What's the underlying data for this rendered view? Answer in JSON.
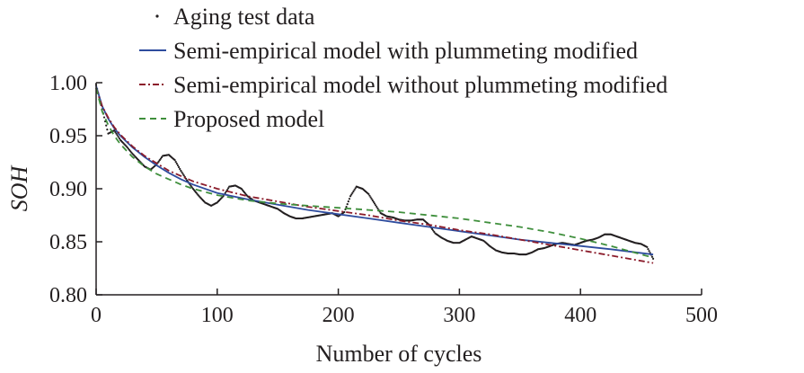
{
  "chart_data": {
    "type": "line",
    "title": "",
    "xlabel": "Number of cycles",
    "ylabel": "SOH",
    "xlim": [
      0,
      500
    ],
    "ylim": [
      0.8,
      1.0
    ],
    "xticks": [
      "0",
      "100",
      "200",
      "300",
      "400",
      "500"
    ],
    "yticks": [
      "0.80",
      "0.85",
      "0.90",
      "0.95",
      "1.00"
    ],
    "grid": false,
    "legend_position": "top-left",
    "series": [
      {
        "name": "Aging test data",
        "style": "dotted",
        "color": "#231f20",
        "x": [
          0,
          5,
          10,
          15,
          20,
          25,
          30,
          35,
          40,
          45,
          50,
          55,
          60,
          65,
          70,
          75,
          80,
          85,
          90,
          95,
          100,
          105,
          110,
          115,
          120,
          125,
          130,
          135,
          140,
          145,
          150,
          155,
          160,
          165,
          170,
          175,
          180,
          185,
          190,
          195,
          200,
          205,
          210,
          215,
          220,
          225,
          230,
          235,
          240,
          245,
          250,
          255,
          260,
          265,
          270,
          275,
          280,
          285,
          290,
          295,
          300,
          305,
          310,
          315,
          320,
          325,
          330,
          335,
          340,
          345,
          350,
          355,
          360,
          365,
          370,
          375,
          380,
          385,
          390,
          395,
          400,
          405,
          410,
          415,
          420,
          425,
          430,
          435,
          440,
          445,
          450,
          455,
          460
        ],
        "y": [
          0.998,
          0.975,
          0.952,
          0.955,
          0.946,
          0.94,
          0.933,
          0.927,
          0.921,
          0.918,
          0.923,
          0.931,
          0.932,
          0.927,
          0.917,
          0.908,
          0.9,
          0.893,
          0.887,
          0.884,
          0.887,
          0.893,
          0.902,
          0.903,
          0.9,
          0.893,
          0.889,
          0.887,
          0.885,
          0.883,
          0.881,
          0.877,
          0.874,
          0.872,
          0.872,
          0.873,
          0.874,
          0.875,
          0.876,
          0.877,
          0.874,
          0.878,
          0.893,
          0.902,
          0.9,
          0.895,
          0.886,
          0.877,
          0.874,
          0.873,
          0.871,
          0.87,
          0.87,
          0.871,
          0.871,
          0.866,
          0.858,
          0.854,
          0.851,
          0.849,
          0.849,
          0.852,
          0.855,
          0.853,
          0.851,
          0.846,
          0.842,
          0.84,
          0.839,
          0.839,
          0.838,
          0.838,
          0.84,
          0.843,
          0.844,
          0.846,
          0.848,
          0.849,
          0.848,
          0.847,
          0.849,
          0.851,
          0.852,
          0.854,
          0.857,
          0.857,
          0.855,
          0.853,
          0.851,
          0.849,
          0.848,
          0.845,
          0.834
        ]
      },
      {
        "name": "Semi-empirical model with plummeting modified",
        "style": "solid",
        "color": "#2e4c9e",
        "x": [
          0,
          5,
          10,
          15,
          20,
          30,
          40,
          50,
          60,
          70,
          80,
          100,
          125,
          150,
          175,
          200,
          225,
          250,
          275,
          300,
          325,
          350,
          375,
          400,
          425,
          460
        ],
        "y": [
          0.997,
          0.978,
          0.966,
          0.957,
          0.95,
          0.939,
          0.93,
          0.922,
          0.915,
          0.909,
          0.904,
          0.896,
          0.89,
          0.885,
          0.88,
          0.876,
          0.872,
          0.868,
          0.864,
          0.86,
          0.856,
          0.852,
          0.849,
          0.846,
          0.843,
          0.838
        ]
      },
      {
        "name": "Semi-empirical model without plummeting modified",
        "style": "dash-dot",
        "color": "#8b1c2b",
        "x": [
          0,
          5,
          10,
          15,
          20,
          30,
          40,
          50,
          60,
          70,
          80,
          100,
          125,
          150,
          175,
          200,
          225,
          250,
          275,
          300,
          325,
          350,
          375,
          400,
          425,
          460
        ],
        "y": [
          0.995,
          0.978,
          0.967,
          0.958,
          0.951,
          0.94,
          0.931,
          0.924,
          0.917,
          0.912,
          0.907,
          0.9,
          0.893,
          0.888,
          0.883,
          0.879,
          0.875,
          0.87,
          0.866,
          0.861,
          0.857,
          0.852,
          0.847,
          0.842,
          0.837,
          0.83
        ]
      },
      {
        "name": "Proposed model",
        "style": "dashed",
        "color": "#3f8f3c",
        "x": [
          0,
          5,
          10,
          15,
          20,
          30,
          40,
          50,
          60,
          70,
          80,
          100,
          125,
          150,
          175,
          200,
          225,
          250,
          275,
          300,
          325,
          350,
          375,
          400,
          425,
          460
        ],
        "y": [
          0.995,
          0.973,
          0.96,
          0.95,
          0.942,
          0.93,
          0.921,
          0.914,
          0.909,
          0.904,
          0.9,
          0.894,
          0.889,
          0.886,
          0.884,
          0.882,
          0.88,
          0.878,
          0.875,
          0.872,
          0.868,
          0.864,
          0.859,
          0.853,
          0.846,
          0.835
        ]
      }
    ]
  }
}
